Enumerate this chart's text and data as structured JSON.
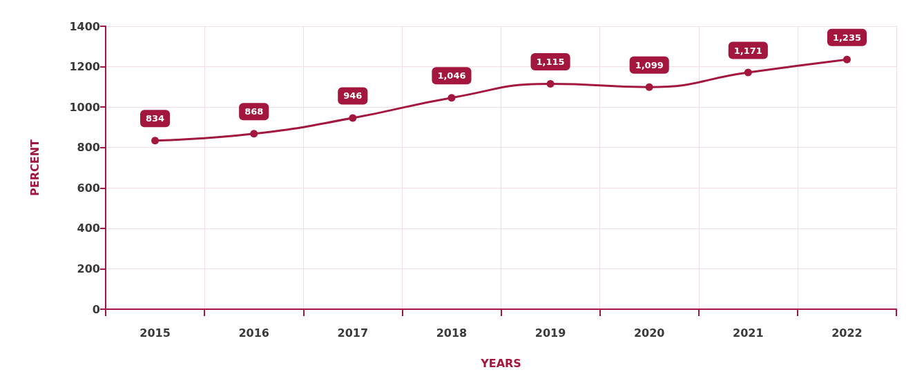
{
  "chart_data": {
    "type": "line",
    "xlabel": "YEARS",
    "ylabel": "PERCENT",
    "categories": [
      "2015",
      "2016",
      "2017",
      "2018",
      "2019",
      "2020",
      "2021",
      "2022"
    ],
    "series": [
      {
        "color": "#a3173f",
        "values": [
          834,
          868,
          946,
          1046,
          1115,
          1099,
          1171,
          1235
        ]
      }
    ],
    "ylim": [
      0,
      1400
    ],
    "yticks": [
      0,
      200,
      400,
      600,
      800,
      1000,
      1200,
      1400
    ],
    "value_labels": [
      "834",
      "868",
      "946",
      "1,046",
      "1,115",
      "1,099",
      "1,171",
      "1,235"
    ],
    "grid": true,
    "marker": "circle",
    "line_style": "solid"
  }
}
